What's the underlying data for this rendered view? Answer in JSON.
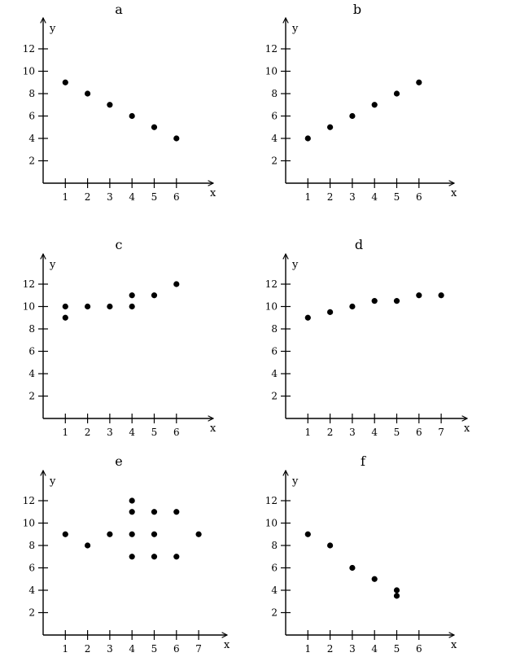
{
  "chart_data": [
    {
      "type": "scatter",
      "title": "a",
      "xlabel": "x",
      "ylabel": "y",
      "x_ticks": [
        1,
        2,
        3,
        4,
        5,
        6
      ],
      "y_ticks": [
        2,
        4,
        6,
        8,
        10,
        12
      ],
      "xlim": [
        0,
        7.3
      ],
      "ylim": [
        0,
        14
      ],
      "points": [
        {
          "x": 1,
          "y": 9
        },
        {
          "x": 2,
          "y": 8
        },
        {
          "x": 3,
          "y": 7
        },
        {
          "x": 4,
          "y": 6
        },
        {
          "x": 5,
          "y": 5
        },
        {
          "x": 6,
          "y": 4
        }
      ]
    },
    {
      "type": "scatter",
      "title": "b",
      "xlabel": "x",
      "ylabel": "y",
      "x_ticks": [
        1,
        2,
        3,
        4,
        5,
        6
      ],
      "y_ticks": [
        2,
        4,
        6,
        8,
        10,
        12
      ],
      "xlim": [
        0,
        7.3
      ],
      "ylim": [
        0,
        14
      ],
      "points": [
        {
          "x": 1,
          "y": 4
        },
        {
          "x": 2,
          "y": 5
        },
        {
          "x": 3,
          "y": 6
        },
        {
          "x": 4,
          "y": 7
        },
        {
          "x": 5,
          "y": 8
        },
        {
          "x": 6,
          "y": 9
        }
      ]
    },
    {
      "type": "scatter",
      "title": "c",
      "xlabel": "x",
      "ylabel": "y",
      "x_ticks": [
        1,
        2,
        3,
        4,
        5,
        6
      ],
      "y_ticks": [
        2,
        4,
        6,
        8,
        10,
        12
      ],
      "xlim": [
        0,
        7.3
      ],
      "ylim": [
        0,
        14
      ],
      "points": [
        {
          "x": 1,
          "y": 10
        },
        {
          "x": 1,
          "y": 9
        },
        {
          "x": 2,
          "y": 10
        },
        {
          "x": 3,
          "y": 10
        },
        {
          "x": 4,
          "y": 11
        },
        {
          "x": 4,
          "y": 10
        },
        {
          "x": 5,
          "y": 11
        },
        {
          "x": 6,
          "y": 12
        }
      ]
    },
    {
      "type": "scatter",
      "title": "d",
      "xlabel": "x",
      "ylabel": "y",
      "x_ticks": [
        1,
        2,
        3,
        4,
        5,
        6,
        7
      ],
      "y_ticks": [
        2,
        4,
        6,
        8,
        10,
        12
      ],
      "xlim": [
        0,
        7.9
      ],
      "ylim": [
        0,
        14
      ],
      "points": [
        {
          "x": 1,
          "y": 9
        },
        {
          "x": 2,
          "y": 9.5
        },
        {
          "x": 3,
          "y": 10
        },
        {
          "x": 4,
          "y": 10.5
        },
        {
          "x": 5,
          "y": 10.5
        },
        {
          "x": 6,
          "y": 11
        },
        {
          "x": 7,
          "y": 11
        }
      ]
    },
    {
      "type": "scatter",
      "title": "e",
      "xlabel": "x",
      "ylabel": "y",
      "x_ticks": [
        1,
        2,
        3,
        4,
        5,
        6,
        7
      ],
      "y_ticks": [
        2,
        4,
        6,
        8,
        10,
        12
      ],
      "xlim": [
        0,
        7.9
      ],
      "ylim": [
        0,
        14
      ],
      "points": [
        {
          "x": 1,
          "y": 9
        },
        {
          "x": 2,
          "y": 8
        },
        {
          "x": 3,
          "y": 9
        },
        {
          "x": 4,
          "y": 12
        },
        {
          "x": 4,
          "y": 11
        },
        {
          "x": 4,
          "y": 9
        },
        {
          "x": 4,
          "y": 7
        },
        {
          "x": 5,
          "y": 11
        },
        {
          "x": 5,
          "y": 9
        },
        {
          "x": 5,
          "y": 7
        },
        {
          "x": 6,
          "y": 11
        },
        {
          "x": 6,
          "y": 7
        },
        {
          "x": 7,
          "y": 9
        }
      ]
    },
    {
      "type": "scatter",
      "title": "f",
      "xlabel": "x",
      "ylabel": "y",
      "x_ticks": [
        1,
        2,
        3,
        4,
        5,
        6
      ],
      "y_ticks": [
        2,
        4,
        6,
        8,
        10,
        12
      ],
      "xlim": [
        0,
        7.3
      ],
      "ylim": [
        0,
        14
      ],
      "points": [
        {
          "x": 1,
          "y": 9
        },
        {
          "x": 2,
          "y": 8
        },
        {
          "x": 3,
          "y": 6
        },
        {
          "x": 4,
          "y": 5
        },
        {
          "x": 5,
          "y": 4
        },
        {
          "x": 5,
          "y": 3.5
        }
      ]
    }
  ]
}
